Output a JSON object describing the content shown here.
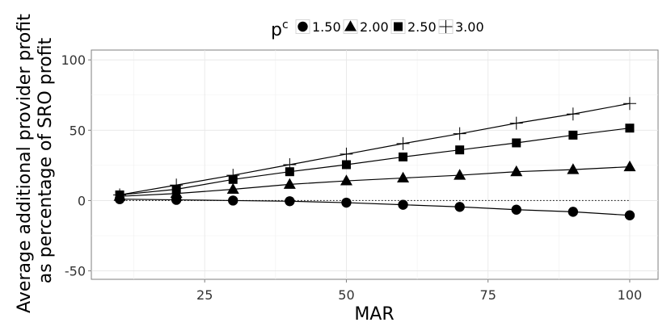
{
  "chart_data": {
    "type": "line",
    "xlabel": "MAR",
    "ylabel_lines": [
      "Average additional provider profit",
      "as percentage of SRO profit"
    ],
    "xlim": [
      5,
      105
    ],
    "ylim": [
      -56,
      107
    ],
    "x_ticks": [
      25,
      50,
      75,
      100
    ],
    "y_ticks": [
      -50,
      0,
      50,
      100
    ],
    "grid": true,
    "legend_position": "top",
    "legend_title": "p",
    "legend_title_superscript": "c",
    "reference_line": {
      "y": 0,
      "style": "dotted"
    },
    "x": [
      10,
      20,
      30,
      40,
      50,
      60,
      70,
      80,
      90,
      100
    ],
    "series": [
      {
        "name": "1.50",
        "shape": "circle",
        "values": [
          1,
          0.5,
          0,
          -0.5,
          -1.5,
          -3,
          -4.5,
          -6.5,
          -8,
          -10.5
        ]
      },
      {
        "name": "2.00",
        "shape": "triangle",
        "values": [
          3,
          5,
          8,
          11.5,
          14,
          16,
          18,
          20.5,
          22,
          24
        ]
      },
      {
        "name": "2.50",
        "shape": "square",
        "values": [
          4,
          8,
          15,
          20.5,
          25.5,
          31,
          36,
          41,
          46.5,
          51.5
        ]
      },
      {
        "name": "3.00",
        "shape": "cross",
        "values": [
          4,
          11,
          18,
          25.5,
          33,
          40.5,
          47.5,
          55,
          61.5,
          69
        ]
      }
    ]
  }
}
